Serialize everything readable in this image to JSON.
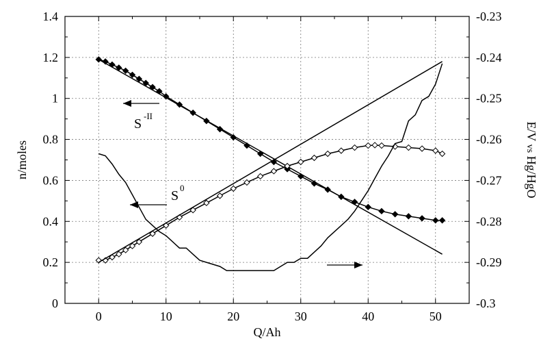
{
  "chart_data": {
    "type": "line",
    "xlabel": "Q/Ah",
    "ylabel_left": "n/moles",
    "ylabel_right": "E/V vs Hg/HgO",
    "ylabel_right_parts": [
      "E/V ",
      "vs",
      " Hg/HgO"
    ],
    "xlim": [
      -5,
      55
    ],
    "ylim_left": [
      0,
      1.4
    ],
    "ylim_right": [
      -0.3,
      -0.23
    ],
    "x_ticks": [
      0,
      10,
      20,
      30,
      40,
      50
    ],
    "y_left_ticks": [
      0,
      0.2,
      0.4,
      0.6,
      0.8,
      1,
      1.2,
      1.4
    ],
    "y_right_ticks": [
      -0.3,
      -0.29,
      -0.28,
      -0.27,
      -0.26,
      -0.25,
      -0.24,
      -0.23
    ],
    "x_tick_labels": [
      "0",
      "10",
      "20",
      "30",
      "40",
      "50"
    ],
    "y_left_tick_labels": [
      "0",
      "0.2",
      "0.4",
      "0.6",
      "0.8",
      "1",
      "1.2",
      "1.4"
    ],
    "y_right_tick_labels": [
      "-0.3",
      "-0.29",
      "-0.28",
      "-0.27",
      "-0.26",
      "-0.25",
      "-0.24",
      "-0.23"
    ],
    "grid": true,
    "annotations": [
      {
        "text": "S",
        "sup": "-II",
        "arrow": "left"
      },
      {
        "text": "S",
        "sup": "0",
        "arrow": "left"
      },
      {
        "text": "",
        "arrow": "right"
      }
    ],
    "series": [
      {
        "axis": "left",
        "marker": "filled-diamond",
        "x": [
          0,
          1,
          2,
          3,
          4,
          5,
          6,
          7,
          8,
          9,
          10,
          12,
          14,
          16,
          18,
          20,
          22,
          24,
          26,
          28,
          30,
          32,
          34,
          36,
          38,
          40,
          42,
          44,
          46,
          48,
          50,
          51
        ],
        "y": [
          1.19,
          1.18,
          1.165,
          1.15,
          1.135,
          1.115,
          1.095,
          1.075,
          1.055,
          1.035,
          1.01,
          0.97,
          0.93,
          0.89,
          0.85,
          0.81,
          0.77,
          0.73,
          0.69,
          0.655,
          0.62,
          0.585,
          0.555,
          0.52,
          0.495,
          0.47,
          0.45,
          0.435,
          0.425,
          0.415,
          0.405,
          0.405
        ]
      },
      {
        "axis": "left",
        "marker": "none",
        "x": [
          0,
          51
        ],
        "y": [
          1.19,
          0.24
        ]
      },
      {
        "axis": "left",
        "marker": "open-diamond",
        "x": [
          0,
          1,
          2,
          3,
          4,
          5,
          6,
          8,
          10,
          12,
          14,
          16,
          18,
          20,
          22,
          24,
          26,
          28,
          30,
          32,
          34,
          36,
          38,
          40,
          41,
          42,
          44,
          46,
          48,
          50,
          51
        ],
        "y": [
          0.21,
          0.21,
          0.225,
          0.24,
          0.26,
          0.28,
          0.3,
          0.34,
          0.38,
          0.42,
          0.455,
          0.49,
          0.525,
          0.56,
          0.59,
          0.62,
          0.645,
          0.67,
          0.69,
          0.71,
          0.73,
          0.745,
          0.76,
          0.77,
          0.772,
          0.77,
          0.765,
          0.76,
          0.755,
          0.745,
          0.73
        ]
      },
      {
        "axis": "left",
        "marker": "none",
        "x": [
          0,
          51
        ],
        "y": [
          0.2,
          1.18
        ]
      },
      {
        "axis": "right",
        "marker": "none",
        "x": [
          0,
          1,
          2,
          3,
          4,
          5,
          6,
          7,
          8,
          9,
          10,
          11,
          12,
          13,
          14,
          15,
          16,
          18,
          19,
          20,
          22,
          24,
          26,
          27,
          28,
          29,
          30,
          31,
          32,
          33,
          34,
          36,
          37,
          38,
          39,
          40,
          41,
          42,
          43,
          44,
          45,
          46,
          47,
          48,
          49,
          50,
          51
        ],
        "y": [
          -0.2635,
          -0.264,
          -0.266,
          -0.2685,
          -0.2705,
          -0.2735,
          -0.2765,
          -0.2795,
          -0.281,
          -0.2825,
          -0.2835,
          -0.285,
          -0.2865,
          -0.2865,
          -0.288,
          -0.2895,
          -0.29,
          -0.291,
          -0.292,
          -0.292,
          -0.292,
          -0.292,
          -0.292,
          -0.291,
          -0.29,
          -0.29,
          -0.289,
          -0.289,
          -0.2875,
          -0.286,
          -0.284,
          -0.281,
          -0.2795,
          -0.2775,
          -0.275,
          -0.2725,
          -0.2695,
          -0.2665,
          -0.264,
          -0.261,
          -0.2605,
          -0.2555,
          -0.254,
          -0.2505,
          -0.2495,
          -0.2465,
          -0.2415
        ]
      }
    ]
  }
}
